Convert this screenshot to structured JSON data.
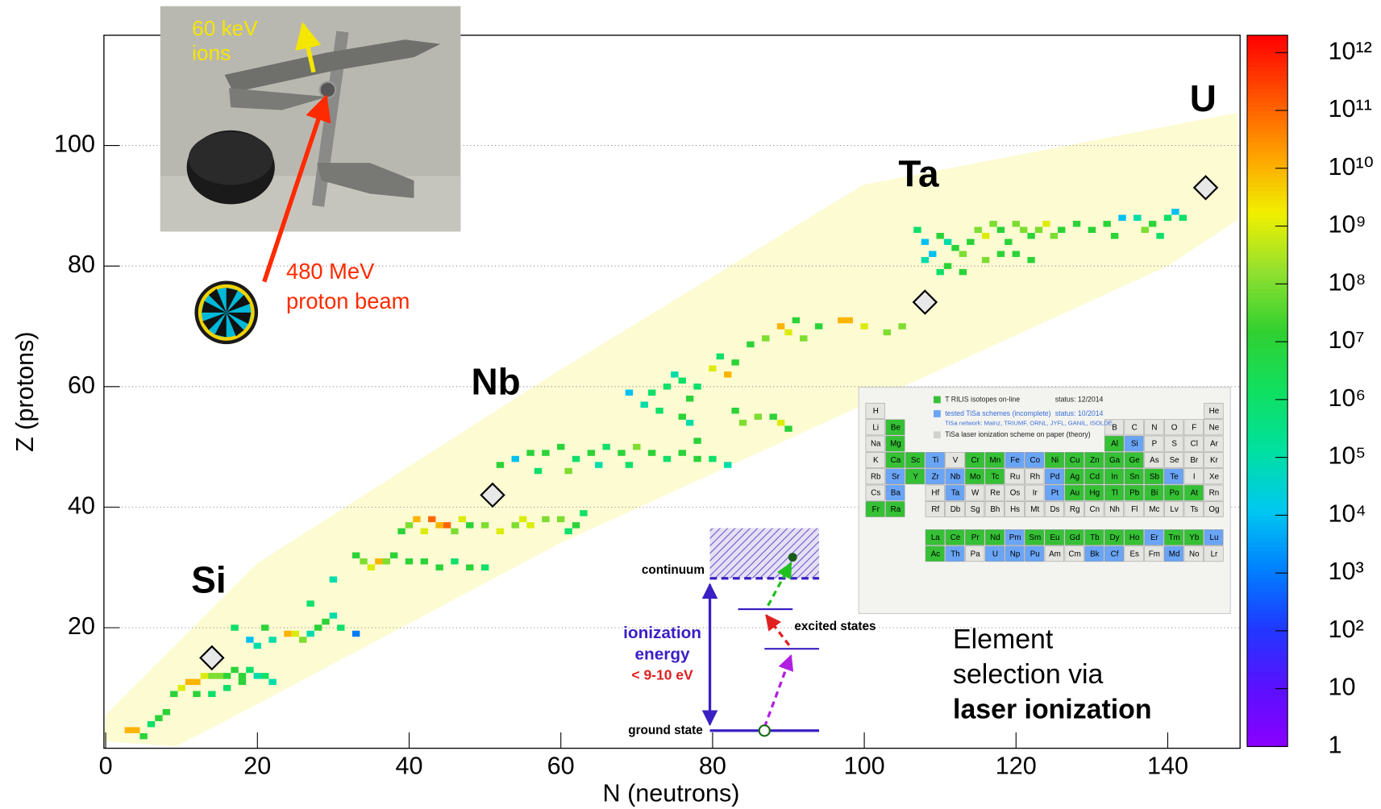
{
  "chart_data": {
    "type": "heatmap",
    "xlabel": "N (neutrons)",
    "ylabel": "Z (protons)",
    "xlim": [
      0,
      150
    ],
    "ylim": [
      0,
      118
    ],
    "xticks": [
      0,
      20,
      40,
      60,
      80,
      100,
      120,
      140
    ],
    "yticks": [
      20,
      40,
      60,
      80,
      100
    ],
    "grid": "y",
    "colorbar": {
      "log": true,
      "clim": [
        1,
        2000000000000.0
      ],
      "colormap": [
        "#8a00ff",
        "#5a10ff",
        "#2038ff",
        "#0080ff",
        "#00c8f0",
        "#00e0a0",
        "#10e060",
        "#30d030",
        "#90e030",
        "#f0f000",
        "#ffa000",
        "#ff5000",
        "#ff0000"
      ],
      "ticks": [
        1,
        10,
        {
          "value": 100,
          "label": "10²"
        },
        {
          "value": 1000,
          "label": "10³"
        },
        {
          "value": 10000,
          "label": "10⁴"
        },
        {
          "value": 100000,
          "label": "10⁵"
        },
        {
          "value": 1000000,
          "label": "10⁶"
        },
        {
          "value": 10000000,
          "label": "10⁷"
        },
        {
          "value": 100000000,
          "label": "10⁸"
        },
        {
          "value": 1000000000,
          "label": "10⁹"
        },
        {
          "value": 10000000000,
          "label": "10¹⁰"
        },
        {
          "value": 100000000000,
          "label": "10¹¹"
        },
        {
          "value": 1000000000000,
          "label": "10¹²"
        }
      ]
    },
    "cells": {
      "n": [
        3,
        4,
        5,
        6,
        7,
        8,
        9,
        10,
        11,
        12,
        13,
        14,
        15,
        16,
        17,
        18,
        19,
        20,
        21,
        22,
        12,
        14,
        16,
        18,
        20,
        19,
        17,
        21,
        22,
        24,
        25,
        26,
        27,
        28,
        29,
        30,
        31,
        33,
        27,
        33,
        34,
        30,
        35,
        36,
        37,
        38,
        40,
        42,
        44,
        46,
        48,
        50,
        39,
        40,
        41,
        42,
        43,
        44,
        45,
        46,
        47,
        48,
        50,
        52,
        54,
        55,
        56,
        58,
        60,
        62,
        63,
        61,
        52,
        54,
        56,
        58,
        60,
        62,
        64,
        66,
        68,
        70,
        72,
        74,
        76,
        78,
        80,
        82,
        57,
        61,
        65,
        69,
        69,
        71,
        72,
        73,
        74,
        75,
        76,
        77,
        78,
        76,
        77,
        78,
        80,
        81,
        82,
        83,
        83,
        84,
        86,
        88,
        89,
        90,
        85,
        87,
        89,
        90,
        91,
        92,
        94,
        97,
        98,
        100,
        103,
        105,
        107,
        108,
        109,
        110,
        111,
        112,
        113,
        114,
        115,
        116,
        117,
        118,
        119,
        120,
        121,
        122,
        123,
        124,
        125,
        126,
        111,
        113,
        116,
        118,
        120,
        122,
        108,
        110,
        130,
        132,
        133,
        134,
        136,
        137,
        138,
        140,
        141,
        142,
        139,
        128
      ],
      "z": [
        3,
        3,
        2,
        4,
        5,
        6,
        9,
        10,
        11,
        11,
        12,
        12,
        12,
        12,
        13,
        12,
        13,
        12,
        12,
        11,
        9,
        9,
        10,
        11,
        17,
        18,
        20,
        20,
        18,
        19,
        19,
        18,
        19,
        20,
        21,
        22,
        20,
        19,
        24,
        32,
        31,
        28,
        30,
        31,
        31,
        32,
        31,
        31,
        30,
        31,
        30,
        30,
        36,
        37,
        38,
        36,
        38,
        37,
        37,
        36,
        38,
        37,
        37,
        36,
        37,
        38,
        37,
        38,
        38,
        37,
        39,
        36,
        47,
        48,
        49,
        49,
        50,
        48,
        49,
        50,
        49,
        50,
        49,
        48,
        49,
        48,
        48,
        47,
        46,
        46,
        47,
        47,
        59,
        57,
        59,
        56,
        60,
        62,
        61,
        58,
        60,
        55,
        54,
        51,
        63,
        65,
        62,
        64,
        56,
        54,
        55,
        55,
        54,
        53,
        67,
        68,
        70,
        69,
        71,
        68,
        70,
        71,
        71,
        70,
        69,
        70,
        86,
        84,
        82,
        85,
        84,
        83,
        82,
        84,
        86,
        85,
        87,
        86,
        84,
        87,
        86,
        85,
        86,
        87,
        85,
        86,
        80,
        79,
        81,
        82,
        82,
        81,
        81,
        79,
        86,
        87,
        85,
        88,
        88,
        86,
        87,
        88,
        89,
        88,
        85,
        87
      ],
      "values": [
        10000000000.0,
        10000000000.0,
        10000000.0,
        1000000.0,
        10000000.0,
        10000000.0,
        10000000.0,
        1000000000.0,
        10000000000.0,
        10000000000.0,
        1000000000.0,
        100000000.0,
        100000000.0,
        10000000.0,
        10000000.0,
        10000000.0,
        1000000.0,
        100000.0,
        1000000.0,
        100000.0,
        10000000.0,
        1000000.0,
        1000000.0,
        10000000.0,
        100000.0,
        10000.0,
        1000000.0,
        10000000.0,
        100000.0,
        10000000000.0,
        1000000000.0,
        100000000.0,
        100000.0,
        10000000.0,
        10000000.0,
        100000.0,
        1000000.0,
        1000.0,
        1000000.0,
        10000000.0,
        100000000.0,
        100000.0,
        1000000000.0,
        10000000000.0,
        100000000.0,
        10000000.0,
        10000000.0,
        10000000.0,
        10000000.0,
        1000000.0,
        10000000.0,
        1000000.0,
        10000000.0,
        100000000.0,
        10000000000.0,
        1000000000.0,
        100000000000.0,
        10000000000.0,
        100000000000.0,
        100000000.0,
        1000000000.0,
        10000000.0,
        100000000.0,
        1000000000.0,
        100000000.0,
        1000000000.0,
        1000000000.0,
        100000000.0,
        100000000.0,
        10000000.0,
        1000000.0,
        1000000.0,
        10000000.0,
        10000.0,
        10000000.0,
        10000000.0,
        10000000.0,
        1000000.0,
        10000000.0,
        1000000.0,
        10000000.0,
        100000000.0,
        10000000.0,
        1000000.0,
        10000000.0,
        10000000.0,
        1000000.0,
        100000.0,
        1000000.0,
        100000000.0,
        100000.0,
        1000000.0,
        10000.0,
        100000.0,
        1000000.0,
        1000000.0,
        1000000.0,
        100000.0,
        1000000.0,
        10000000.0,
        1000000.0,
        10000000.0,
        100000.0,
        10000000.0,
        1000000000.0,
        1000000.0,
        10000000000.0,
        10000000.0,
        10000000.0,
        100000000.0,
        100000000.0,
        10000000.0,
        1000000000.0,
        10000000.0,
        10000000.0,
        100000000.0,
        10000000000.0,
        1000000000.0,
        10000000.0,
        100000000.0,
        10000000.0,
        10000000000.0,
        10000000000.0,
        1000000000.0,
        100000000.0,
        100000000.0,
        1000000.0,
        10000.0,
        10000.0,
        10000000.0,
        100000.0,
        10000000.0,
        100000000.0,
        10000000.0,
        100000000.0,
        1000000000.0,
        100000000.0,
        10000000.0,
        10000000.0,
        100000000.0,
        100000000.0,
        10000000.0,
        100000000.0,
        1000000000.0,
        100000000.0,
        10000000.0,
        10000000.0,
        10000000.0,
        100000000.0,
        10000000.0,
        10000000.0,
        10000000.0,
        100000.0,
        1000000.0,
        10000000.0,
        10000000.0,
        10000000.0,
        10000.0,
        100000.0,
        100000000.0,
        10000000.0,
        1000000.0,
        10000.0,
        1000000.0,
        1000000.0,
        10000000.0
      ]
    },
    "targets": {
      "x": [
        14,
        51,
        108,
        145
      ],
      "y": [
        15,
        42,
        74,
        93
      ]
    },
    "element_labels": [
      "Si",
      "Nb",
      "Ta",
      "U"
    ],
    "photo_labels": {
      "ions": [
        "60 keV",
        "ions"
      ],
      "beam": [
        "480 MeV",
        "proton beam"
      ]
    },
    "laser_scheme": {
      "continuum": "continuum",
      "ionization": [
        "ionization",
        "energy"
      ],
      "energy_limit": "< 9-10 eV",
      "excited": "excited states",
      "ground": "ground state"
    },
    "selection_text": [
      "Element",
      "selection via",
      "laser ionization"
    ],
    "periodic_table": {
      "legend": [
        "T RILIS isotopes on-line",
        "status: 12/2014",
        "tested TiSa schemes (incomplete)",
        "status: 10/2014",
        "TiSa network: Mainz, TRIUMF, ORNL, JYFL, GANIL, ISOLDE",
        "TiSa laser ionization scheme on paper (theory)"
      ],
      "symbols": [
        "H",
        "He",
        "Li",
        "Be",
        "B",
        "C",
        "N",
        "O",
        "F",
        "Ne",
        "Na",
        "Mg",
        "Al",
        "Si",
        "P",
        "S",
        "Cl",
        "Ar",
        "K",
        "Ca",
        "Sc",
        "Ti",
        "V",
        "Cr",
        "Mn",
        "Fe",
        "Co",
        "Ni",
        "Cu",
        "Zn",
        "Ga",
        "Ge",
        "As",
        "Se",
        "Br",
        "Kr",
        "Rb",
        "Sr",
        "Y",
        "Zr",
        "Nb",
        "Mo",
        "Tc",
        "Ru",
        "Rh",
        "Pd",
        "Ag",
        "Cd",
        "In",
        "Sn",
        "Sb",
        "Te",
        "I",
        "Xe",
        "Cs",
        "Ba",
        "La",
        "Ce",
        "Pr",
        "Nd",
        "Pm",
        "Sm",
        "Eu",
        "Gd",
        "Tb",
        "Dy",
        "Ho",
        "Er",
        "Tm",
        "Yb",
        "Lu",
        "Hf",
        "Ta",
        "W",
        "Re",
        "Os",
        "Ir",
        "Pt",
        "Au",
        "Hg",
        "Tl",
        "Pb",
        "Bi",
        "Po",
        "At",
        "Rn",
        "Fr",
        "Ra",
        "Ac",
        "Th",
        "Pa",
        "U",
        "Np",
        "Pu",
        "Am",
        "Cm",
        "Bk",
        "Cf",
        "Es",
        "Fm",
        "Md",
        "No",
        "Lr",
        "Rf",
        "Db",
        "Sg",
        "Bh",
        "Hs",
        "Mt",
        "Ds",
        "Rg",
        "Cn",
        "Nh",
        "Fl",
        "Mc",
        "Lv",
        "Ts",
        "Og"
      ],
      "online": [
        "Be",
        "Mg",
        "Al",
        "Ca",
        "Sc",
        "Cr",
        "Mn",
        "Ni",
        "Cu",
        "Zn",
        "Ga",
        "Ge",
        "Y",
        "Mo",
        "Tc",
        "Ag",
        "Cd",
        "In",
        "Sn",
        "Sb",
        "La",
        "Ce",
        "Pr",
        "Nd",
        "Sm",
        "Eu",
        "Gd",
        "Tb",
        "Dy",
        "Ho",
        "Tm",
        "Yb",
        "Au",
        "Hg",
        "Tl",
        "Pb",
        "Bi",
        "Po",
        "At",
        "Fr",
        "Ra",
        "Ac"
      ],
      "tested": [
        "Si",
        "Ti",
        "Fe",
        "Co",
        "Sr",
        "Zr",
        "Nb",
        "Pd",
        "Te",
        "Ba",
        "Ta",
        "Pt",
        "Er",
        "Pm",
        "Lu",
        "Th",
        "U",
        "Np",
        "Pu",
        "Bk",
        "Cf",
        "Md"
      ]
    }
  }
}
